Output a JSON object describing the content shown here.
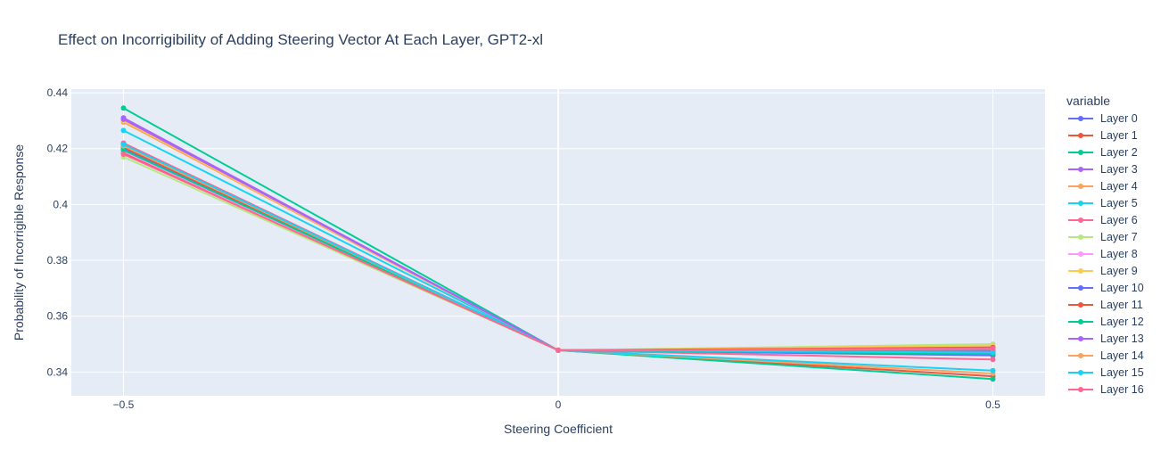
{
  "chart_data": {
    "type": "line",
    "title": "Effect on Incorrigibility of Adding Steering Vector At Each Layer, GPT2-xl",
    "xlabel": "Steering Coefficient",
    "ylabel": "Probability of Incorrigible Response",
    "x": [
      -0.5,
      0,
      0.5
    ],
    "x_tick_values": [
      -0.5,
      0,
      0.5
    ],
    "x_tick_labels": [
      "−0.5",
      "0",
      "0.5"
    ],
    "xlim": [
      -0.56,
      0.56
    ],
    "y_tick_values": [
      0.34,
      0.36,
      0.38,
      0.4,
      0.42,
      0.44
    ],
    "y_tick_labels": [
      "0.34",
      "0.36",
      "0.38",
      "0.4",
      "0.42",
      "0.44"
    ],
    "ylim": [
      0.3315,
      0.4413
    ],
    "grid": true,
    "legend_title": "variable",
    "legend_position": "right",
    "plot_bgcolor": "#e5ecf6",
    "series": [
      {
        "name": "Layer 0",
        "color": "#636efa",
        "values": [
          0.42,
          0.3478,
          0.346
        ]
      },
      {
        "name": "Layer 1",
        "color": "#ef553b",
        "values": [
          0.4185,
          0.3478,
          0.3385
        ]
      },
      {
        "name": "Layer 2",
        "color": "#00cc96",
        "values": [
          0.4345,
          0.3478,
          0.3375
        ]
      },
      {
        "name": "Layer 3",
        "color": "#ab63fa",
        "values": [
          0.431,
          0.3478,
          0.347
        ]
      },
      {
        "name": "Layer 4",
        "color": "#ffa15a",
        "values": [
          0.4295,
          0.3478,
          0.3395
        ]
      },
      {
        "name": "Layer 5",
        "color": "#19d3f3",
        "values": [
          0.4265,
          0.3478,
          0.3405
        ]
      },
      {
        "name": "Layer 6",
        "color": "#ff6692",
        "values": [
          0.422,
          0.3478,
          0.3445
        ]
      },
      {
        "name": "Layer 7",
        "color": "#b6e880",
        "values": [
          0.417,
          0.3478,
          0.35
        ]
      },
      {
        "name": "Layer 8",
        "color": "#ff97ff",
        "values": [
          0.419,
          0.3478,
          0.349
        ]
      },
      {
        "name": "Layer 9",
        "color": "#fecb52",
        "values": [
          0.43,
          0.3478,
          0.3495
        ]
      },
      {
        "name": "Layer 10",
        "color": "#636efa",
        "values": [
          0.4215,
          0.3478,
          0.348
        ]
      },
      {
        "name": "Layer 11",
        "color": "#ef553b",
        "values": [
          0.4205,
          0.3478,
          0.3488
        ]
      },
      {
        "name": "Layer 12",
        "color": "#00cc96",
        "values": [
          0.4195,
          0.3478,
          0.3465
        ]
      },
      {
        "name": "Layer 13",
        "color": "#ab63fa",
        "values": [
          0.4305,
          0.3478,
          0.3475
        ]
      },
      {
        "name": "Layer 14",
        "color": "#ffa15a",
        "values": [
          0.421,
          0.3478,
          0.3483
        ]
      },
      {
        "name": "Layer 15",
        "color": "#19d3f3",
        "values": [
          0.4215,
          0.3478,
          0.347
        ]
      },
      {
        "name": "Layer 16",
        "color": "#ff6692",
        "values": [
          0.418,
          0.3478,
          0.3485
        ]
      }
    ]
  }
}
